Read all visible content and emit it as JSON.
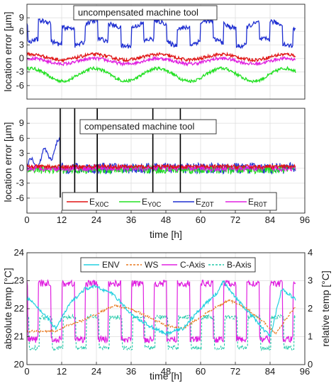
{
  "chart_data": [
    {
      "type": "line",
      "annotation": "uncompensated machine tool",
      "ylabel": "location error [µm]",
      "xlabel": "",
      "xlim": [
        0,
        96
      ],
      "ylim": [
        -9,
        12
      ],
      "xticks": [
        0,
        12,
        24,
        36,
        48,
        60,
        72,
        84,
        96
      ],
      "yticks": [
        -6,
        -3,
        0,
        3,
        6,
        9
      ],
      "grid": true,
      "series": [
        {
          "color": "#1f2fd1",
          "level_low": 3.5,
          "level_high": 7.5,
          "noise": 0.5,
          "period_h": 8,
          "phase": 0.5
        },
        {
          "color": "#e01414",
          "mean": 0.3,
          "amplitude": 0.6,
          "noise": 0.35,
          "period_h": 22
        },
        {
          "color": "#22e022",
          "mean": -3.6,
          "amplitude": 1.4,
          "noise": 0.35,
          "period_h": 22
        },
        {
          "color": "#e020e0",
          "mean": -0.6,
          "amplitude": 0.6,
          "noise": 0.35,
          "period_h": 22
        }
      ]
    },
    {
      "type": "line",
      "annotation": "compensated machine tool",
      "ylabel": "location error [µm]",
      "xlabel": "time [h]",
      "xlim": [
        0,
        96
      ],
      "ylim": [
        -9,
        12
      ],
      "xticks": [
        0,
        12,
        24,
        36,
        48,
        60,
        72,
        84,
        96
      ],
      "yticks": [
        -6,
        -3,
        0,
        3,
        6,
        9
      ],
      "vlines": [
        11.5,
        16.5,
        24.3,
        43.5,
        53
      ],
      "grid": true,
      "legend": {
        "placement": "lower-middle",
        "entries": [
          {
            "base": "E",
            "sub": "X0C",
            "color": "#e01414"
          },
          {
            "base": "E",
            "sub": "Y0C",
            "color": "#22e022"
          },
          {
            "base": "E",
            "sub": "Z0T",
            "color": "#1f2fd1"
          },
          {
            "base": "E",
            "sub": "R0T",
            "color": "#e020e0"
          }
        ]
      },
      "series": [
        {
          "color": "#1f2fd1",
          "mean": 0,
          "noise": 1.1,
          "before_first_comp_h": 11.5,
          "before_level": 4.5
        },
        {
          "color": "#e01414",
          "mean": 0.3,
          "noise": 0.4
        },
        {
          "color": "#22e022",
          "mean": -0.3,
          "noise": 0.8
        },
        {
          "color": "#e020e0",
          "mean": 0,
          "noise": 0.6
        }
      ]
    },
    {
      "type": "line",
      "ylabel": "absolute temp [°C]",
      "ylabel_right": "relative temp [°C]",
      "xlabel": "time [h]",
      "xlim": [
        0,
        96
      ],
      "ylim": [
        20,
        24
      ],
      "ylim_right": [
        0,
        4
      ],
      "xticks": [
        0,
        12,
        24,
        36,
        48,
        60,
        72,
        84,
        96
      ],
      "yticks": [
        20,
        21,
        22,
        23,
        24
      ],
      "yticks_right": [
        0,
        1,
        2,
        3,
        4
      ],
      "left_axis_color": "#1fa0d8",
      "right_axis_color": "#e8781e",
      "grid": true,
      "legend": {
        "placement": "top",
        "entries": [
          {
            "label": "ENV",
            "color": "#22d0e0",
            "style": "solid"
          },
          {
            "label": "WS",
            "color": "#e8781e",
            "style": "dashed"
          },
          {
            "label": "C-Axis",
            "color": "#e020e0",
            "style": "solid"
          },
          {
            "label": "B-Axis",
            "color": "#20c8a8",
            "style": "dashed"
          }
        ]
      },
      "series": [
        {
          "name": "ENV",
          "color": "#22d0e0",
          "points": [
            [
              0,
              22.4
            ],
            [
              6,
              21.8
            ],
            [
              10,
              21.3
            ],
            [
              15,
              22.2
            ],
            [
              20,
              22.7
            ],
            [
              24,
              22.8
            ],
            [
              30,
              22.5
            ],
            [
              36,
              21.8
            ],
            [
              42,
              21.4
            ],
            [
              48,
              21.1
            ],
            [
              54,
              21.3
            ],
            [
              60,
              22.0
            ],
            [
              66,
              22.6
            ],
            [
              68,
              23.0
            ],
            [
              72,
              22.4
            ],
            [
              78,
              21.7
            ],
            [
              84,
              21.0
            ],
            [
              88,
              22.7
            ],
            [
              92,
              22.4
            ],
            [
              93,
              22.3
            ]
          ]
        },
        {
          "name": "WS",
          "color": "#e8781e",
          "points": [
            [
              0,
              1.2
            ],
            [
              10,
              1.2
            ],
            [
              14,
              1.4
            ],
            [
              20,
              1.6
            ],
            [
              24,
              1.8
            ],
            [
              30,
              2.1
            ],
            [
              36,
              2.0
            ],
            [
              42,
              1.7
            ],
            [
              48,
              1.4
            ],
            [
              54,
              1.3
            ],
            [
              60,
              1.7
            ],
            [
              66,
              2.1
            ],
            [
              70,
              2.3
            ],
            [
              76,
              2.0
            ],
            [
              82,
              1.5
            ],
            [
              86,
              1.1
            ],
            [
              90,
              1.7
            ],
            [
              93,
              2.1
            ]
          ]
        },
        {
          "name": "C-Axis",
          "color": "#e020e0",
          "low": 0.9,
          "high": 2.9,
          "period_h": 8
        },
        {
          "name": "B-Axis",
          "color": "#20c8a8",
          "low": 0.6,
          "high": 1.7,
          "period_h": 8
        }
      ]
    }
  ]
}
